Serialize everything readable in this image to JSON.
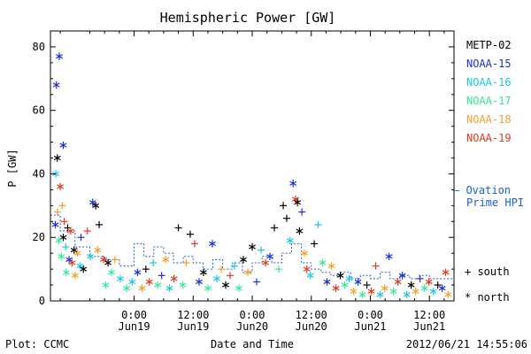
{
  "page": {
    "footer_left": "Plot: CCMC",
    "footer_right": "2012/06/21 14:55:06"
  },
  "chart_data": {
    "type": "scatter",
    "title": "Hemispheric Power [GW]",
    "ylabel": "P [GW]",
    "xlabel": "Date and Time",
    "x_start_hours": -17,
    "x_end_hours": 65,
    "ylim": [
      0,
      85
    ],
    "yticks": [
      0,
      20,
      40,
      60,
      80
    ],
    "x_ticks": [
      {
        "hour": 0,
        "time": "0:00",
        "date": "Jun19"
      },
      {
        "hour": 12,
        "time": "12:00",
        "date": "Jun19"
      },
      {
        "hour": 24,
        "time": "0:00",
        "date": "Jun20"
      },
      {
        "hour": 36,
        "time": "12:00",
        "date": "Jun20"
      },
      {
        "hour": 48,
        "time": "0:00",
        "date": "Jun21"
      },
      {
        "hour": 60,
        "time": "12:00",
        "date": "Jun21"
      }
    ],
    "series": [
      {
        "name": "METP-02",
        "color": "#000000"
      },
      {
        "name": "NOAA-15",
        "color": "#1a2fd8"
      },
      {
        "name": "NOAA-16",
        "color": "#19c8e6"
      },
      {
        "name": "NOAA-17",
        "color": "#35e89a"
      },
      {
        "name": "NOAA-18",
        "color": "#f0a030"
      },
      {
        "name": "NOAA-19",
        "color": "#e03a1c"
      }
    ],
    "ovation": {
      "label_line1": "– Ovation",
      "label_line2": "Prime HPI",
      "color": "#1a5fd0",
      "steps": [
        {
          "x": -17,
          "y": 27
        },
        {
          "x": -15,
          "y": 22
        },
        {
          "x": -12,
          "y": 17
        },
        {
          "x": -9,
          "y": 14
        },
        {
          "x": -6,
          "y": 13
        },
        {
          "x": -3,
          "y": 11
        },
        {
          "x": 0,
          "y": 18
        },
        {
          "x": 2,
          "y": 14
        },
        {
          "x": 4,
          "y": 17
        },
        {
          "x": 6,
          "y": 15
        },
        {
          "x": 8,
          "y": 12
        },
        {
          "x": 10,
          "y": 14
        },
        {
          "x": 12,
          "y": 12
        },
        {
          "x": 14,
          "y": 10
        },
        {
          "x": 16,
          "y": 13
        },
        {
          "x": 18,
          "y": 10
        },
        {
          "x": 20,
          "y": 12
        },
        {
          "x": 22,
          "y": 9
        },
        {
          "x": 24,
          "y": 12
        },
        {
          "x": 26,
          "y": 14
        },
        {
          "x": 28,
          "y": 12
        },
        {
          "x": 30,
          "y": 15
        },
        {
          "x": 32,
          "y": 18
        },
        {
          "x": 34,
          "y": 12
        },
        {
          "x": 36,
          "y": 10
        },
        {
          "x": 38,
          "y": 9
        },
        {
          "x": 40,
          "y": 8
        },
        {
          "x": 42,
          "y": 9
        },
        {
          "x": 44,
          "y": 7
        },
        {
          "x": 46,
          "y": 8
        },
        {
          "x": 48,
          "y": 7
        },
        {
          "x": 50,
          "y": 9
        },
        {
          "x": 52,
          "y": 7
        },
        {
          "x": 54,
          "y": 8
        },
        {
          "x": 56,
          "y": 7
        },
        {
          "x": 58,
          "y": 8
        },
        {
          "x": 60,
          "y": 7
        },
        {
          "x": 62,
          "y": 7
        },
        {
          "x": 65,
          "y": 7
        }
      ]
    },
    "points": [
      {
        "x": -15.8,
        "y": 68,
        "s": 1,
        "m": "north"
      },
      {
        "x": -15.2,
        "y": 77,
        "s": 1,
        "m": "north"
      },
      {
        "x": -14.4,
        "y": 49,
        "s": 1,
        "m": "north"
      },
      {
        "x": -15.6,
        "y": 45,
        "s": 0,
        "m": "north"
      },
      {
        "x": -15.9,
        "y": 40,
        "s": 2,
        "m": "north"
      },
      {
        "x": -15.0,
        "y": 36,
        "s": 5,
        "m": "north"
      },
      {
        "x": -14.6,
        "y": 30,
        "s": 4,
        "m": "south"
      },
      {
        "x": -15.6,
        "y": 28,
        "s": 4,
        "m": "south"
      },
      {
        "x": -14.2,
        "y": 25,
        "s": 5,
        "m": "south"
      },
      {
        "x": -16.0,
        "y": 24,
        "s": 1,
        "m": "north"
      },
      {
        "x": -13.5,
        "y": 23,
        "s": 0,
        "m": "south"
      },
      {
        "x": -12.9,
        "y": 22,
        "s": 5,
        "m": "north"
      },
      {
        "x": -14.4,
        "y": 20,
        "s": 0,
        "m": "north"
      },
      {
        "x": -15.3,
        "y": 19,
        "s": 3,
        "m": "north"
      },
      {
        "x": -13.9,
        "y": 17,
        "s": 2,
        "m": "south"
      },
      {
        "x": -12.2,
        "y": 16,
        "s": 0,
        "m": "north"
      },
      {
        "x": -11.5,
        "y": 15,
        "s": 4,
        "m": "north"
      },
      {
        "x": -14.8,
        "y": 14,
        "s": 3,
        "m": "north"
      },
      {
        "x": -13.2,
        "y": 13,
        "s": 1,
        "m": "north"
      },
      {
        "x": -12.6,
        "y": 12,
        "s": 5,
        "m": "north"
      },
      {
        "x": -11.0,
        "y": 11,
        "s": 2,
        "m": "north"
      },
      {
        "x": -10.3,
        "y": 10,
        "s": 0,
        "m": "north"
      },
      {
        "x": -13.8,
        "y": 9,
        "s": 3,
        "m": "north"
      },
      {
        "x": -12.0,
        "y": 8,
        "s": 4,
        "m": "north"
      },
      {
        "x": -10.8,
        "y": 20,
        "s": 1,
        "m": "south"
      },
      {
        "x": -9.5,
        "y": 22,
        "s": 5,
        "m": "south"
      },
      {
        "x": -8.4,
        "y": 31,
        "s": 1,
        "m": "north"
      },
      {
        "x": -7.8,
        "y": 30,
        "s": 0,
        "m": "north"
      },
      {
        "x": -7.1,
        "y": 24,
        "s": 0,
        "m": "south"
      },
      {
        "x": -8.9,
        "y": 14,
        "s": 2,
        "m": "north"
      },
      {
        "x": -7.4,
        "y": 16,
        "s": 4,
        "m": "north"
      },
      {
        "x": -6.2,
        "y": 13,
        "s": 5,
        "m": "north"
      },
      {
        "x": -5.3,
        "y": 12,
        "s": 0,
        "m": "north"
      },
      {
        "x": -4.6,
        "y": 9,
        "s": 3,
        "m": "north"
      },
      {
        "x": -3.9,
        "y": 13,
        "s": 4,
        "m": "south"
      },
      {
        "x": -5.8,
        "y": 5,
        "s": 3,
        "m": "north"
      },
      {
        "x": -2.8,
        "y": 7,
        "s": 2,
        "m": "north"
      },
      {
        "x": -1.5,
        "y": 4,
        "s": 3,
        "m": "north"
      },
      {
        "x": -0.4,
        "y": 6,
        "s": 2,
        "m": "north"
      },
      {
        "x": 0.7,
        "y": 9,
        "s": 1,
        "m": "north"
      },
      {
        "x": 1.6,
        "y": 4,
        "s": 4,
        "m": "north"
      },
      {
        "x": 2.4,
        "y": 10,
        "s": 0,
        "m": "south"
      },
      {
        "x": 3.1,
        "y": 6,
        "s": 5,
        "m": "north"
      },
      {
        "x": 3.9,
        "y": 12,
        "s": 2,
        "m": "south"
      },
      {
        "x": 4.8,
        "y": 5,
        "s": 3,
        "m": "north"
      },
      {
        "x": 5.6,
        "y": 8,
        "s": 1,
        "m": "south"
      },
      {
        "x": 6.4,
        "y": 13,
        "s": 4,
        "m": "north"
      },
      {
        "x": 7.2,
        "y": 4,
        "s": 2,
        "m": "north"
      },
      {
        "x": 8.1,
        "y": 7,
        "s": 5,
        "m": "north"
      },
      {
        "x": 9.0,
        "y": 23,
        "s": 0,
        "m": "south"
      },
      {
        "x": 9.9,
        "y": 5,
        "s": 3,
        "m": "north"
      },
      {
        "x": 10.6,
        "y": 12,
        "s": 4,
        "m": "south"
      },
      {
        "x": 11.4,
        "y": 21,
        "s": 0,
        "m": "south"
      },
      {
        "x": 12.3,
        "y": 18,
        "s": 5,
        "m": "south"
      },
      {
        "x": 13.2,
        "y": 6,
        "s": 1,
        "m": "north"
      },
      {
        "x": 14.1,
        "y": 9,
        "s": 0,
        "m": "north"
      },
      {
        "x": 15.0,
        "y": 4,
        "s": 3,
        "m": "north"
      },
      {
        "x": 15.9,
        "y": 18,
        "s": 1,
        "m": "north"
      },
      {
        "x": 16.8,
        "y": 7,
        "s": 2,
        "m": "north"
      },
      {
        "x": 17.7,
        "y": 10,
        "s": 4,
        "m": "south"
      },
      {
        "x": 18.6,
        "y": 5,
        "s": 0,
        "m": "north"
      },
      {
        "x": 19.5,
        "y": 8,
        "s": 5,
        "m": "south"
      },
      {
        "x": 20.4,
        "y": 11,
        "s": 2,
        "m": "south"
      },
      {
        "x": 21.3,
        "y": 4,
        "s": 3,
        "m": "north"
      },
      {
        "x": 22.2,
        "y": 13,
        "s": 0,
        "m": "north"
      },
      {
        "x": 23.1,
        "y": 9,
        "s": 4,
        "m": "north"
      },
      {
        "x": 24.0,
        "y": 17,
        "s": 0,
        "m": "north"
      },
      {
        "x": 24.9,
        "y": 6,
        "s": 1,
        "m": "south"
      },
      {
        "x": 25.8,
        "y": 16,
        "s": 2,
        "m": "south"
      },
      {
        "x": 26.7,
        "y": 12,
        "s": 5,
        "m": "north"
      },
      {
        "x": 27.6,
        "y": 14,
        "s": 1,
        "m": "north"
      },
      {
        "x": 28.5,
        "y": 23,
        "s": 0,
        "m": "south"
      },
      {
        "x": 29.4,
        "y": 10,
        "s": 3,
        "m": "south"
      },
      {
        "x": 30.3,
        "y": 30,
        "s": 0,
        "m": "south"
      },
      {
        "x": 31.0,
        "y": 26,
        "s": 0,
        "m": "south"
      },
      {
        "x": 31.7,
        "y": 19,
        "s": 2,
        "m": "north"
      },
      {
        "x": 32.3,
        "y": 37,
        "s": 1,
        "m": "north"
      },
      {
        "x": 32.8,
        "y": 32,
        "s": 5,
        "m": "north"
      },
      {
        "x": 33.2,
        "y": 31,
        "s": 0,
        "m": "north"
      },
      {
        "x": 33.6,
        "y": 22,
        "s": 0,
        "m": "north"
      },
      {
        "x": 34.1,
        "y": 28,
        "s": 1,
        "m": "south"
      },
      {
        "x": 34.6,
        "y": 15,
        "s": 4,
        "m": "north"
      },
      {
        "x": 35.1,
        "y": 10,
        "s": 5,
        "m": "north"
      },
      {
        "x": 35.8,
        "y": 8,
        "s": 2,
        "m": "north"
      },
      {
        "x": 36.6,
        "y": 18,
        "s": 0,
        "m": "south"
      },
      {
        "x": 37.4,
        "y": 24,
        "s": 2,
        "m": "south"
      },
      {
        "x": 38.3,
        "y": 12,
        "s": 3,
        "m": "north"
      },
      {
        "x": 39.2,
        "y": 6,
        "s": 1,
        "m": "north"
      },
      {
        "x": 40.1,
        "y": 11,
        "s": 4,
        "m": "north"
      },
      {
        "x": 41.0,
        "y": 4,
        "s": 5,
        "m": "north"
      },
      {
        "x": 41.9,
        "y": 8,
        "s": 0,
        "m": "north"
      },
      {
        "x": 42.8,
        "y": 5,
        "s": 3,
        "m": "north"
      },
      {
        "x": 43.7,
        "y": 7,
        "s": 2,
        "m": "north"
      },
      {
        "x": 44.6,
        "y": 3,
        "s": 4,
        "m": "north"
      },
      {
        "x": 45.5,
        "y": 6,
        "s": 1,
        "m": "north"
      },
      {
        "x": 46.4,
        "y": 2,
        "s": 3,
        "m": "north"
      },
      {
        "x": 47.3,
        "y": 5,
        "s": 0,
        "m": "south"
      },
      {
        "x": 48.2,
        "y": 3,
        "s": 5,
        "m": "north"
      },
      {
        "x": 49.1,
        "y": 11,
        "s": 5,
        "m": "south"
      },
      {
        "x": 50.0,
        "y": 2,
        "s": 2,
        "m": "north"
      },
      {
        "x": 50.9,
        "y": 4,
        "s": 4,
        "m": "north"
      },
      {
        "x": 51.8,
        "y": 14,
        "s": 1,
        "m": "north"
      },
      {
        "x": 52.7,
        "y": 3,
        "s": 3,
        "m": "north"
      },
      {
        "x": 53.6,
        "y": 6,
        "s": 5,
        "m": "north"
      },
      {
        "x": 54.5,
        "y": 8,
        "s": 1,
        "m": "north"
      },
      {
        "x": 55.4,
        "y": 2,
        "s": 2,
        "m": "north"
      },
      {
        "x": 56.3,
        "y": 5,
        "s": 0,
        "m": "north"
      },
      {
        "x": 57.2,
        "y": 3,
        "s": 4,
        "m": "north"
      },
      {
        "x": 58.1,
        "y": 7,
        "s": 1,
        "m": "south"
      },
      {
        "x": 59.0,
        "y": 4,
        "s": 3,
        "m": "north"
      },
      {
        "x": 59.9,
        "y": 6,
        "s": 5,
        "m": "north"
      },
      {
        "x": 60.8,
        "y": 3,
        "s": 2,
        "m": "north"
      },
      {
        "x": 61.7,
        "y": 5,
        "s": 0,
        "m": "south"
      },
      {
        "x": 62.6,
        "y": 4,
        "s": 1,
        "m": "north"
      },
      {
        "x": 63.3,
        "y": 9,
        "s": 5,
        "m": "north"
      },
      {
        "x": 63.8,
        "y": 2,
        "s": 4,
        "m": "north"
      }
    ],
    "marker_legend": [
      {
        "symbol": "+",
        "label": "south"
      },
      {
        "symbol": "*",
        "label": "north"
      }
    ]
  }
}
